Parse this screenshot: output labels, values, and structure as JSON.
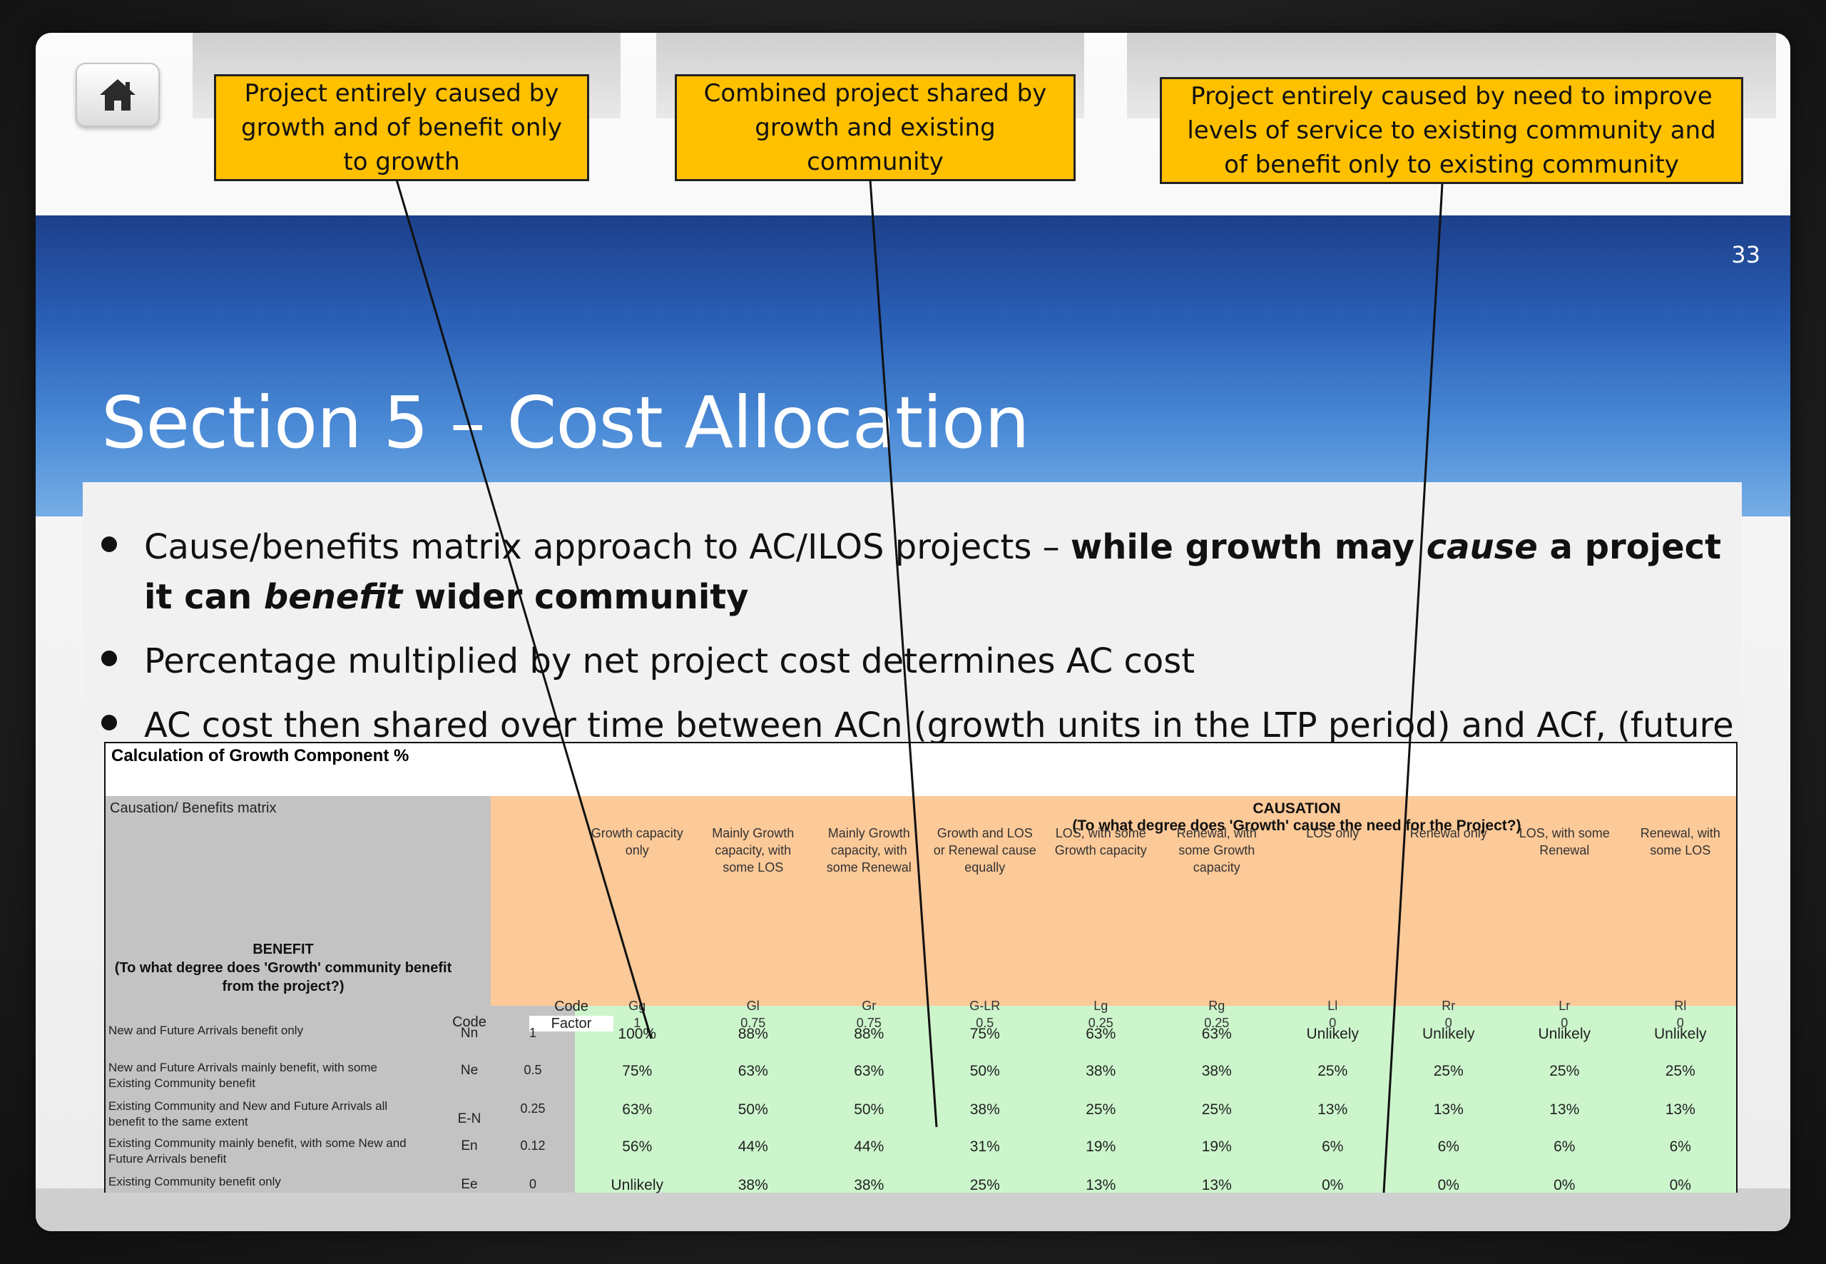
{
  "slide": {
    "number": "33",
    "title": "Section 5 – Cost Allocation"
  },
  "callouts": [
    "Project entirely caused by growth and of benefit only to growth",
    "Combined project shared by growth and existing community",
    "Project entirely caused by need to improve levels of service to existing community and of benefit only to existing community"
  ],
  "bullets": [
    {
      "plain": "Cause/benefits matrix approach to AC/ILOS projects – ",
      "b1": "while growth may ",
      "i1": "cause",
      "b2": " a project it can ",
      "i2": "benefit",
      "b3": " wider community"
    },
    {
      "text": "Percentage multiplied by net project cost determines AC cost"
    },
    {
      "text": "AC cost then shared over time between ACn (growth units in the LTP period) and ACf, (future growth after the LTP)"
    }
  ],
  "matrix": {
    "title": "Calculation of Growth Component %",
    "corner_label": "Causation/ Benefits matrix",
    "causation_title": "CAUSATION",
    "causation_subtitle": "(To what degree does 'Growth' cause the need for the Project?)",
    "benefit_heading": "BENEFIT\n(To what degree does 'Growth' community benefit from the project?)",
    "code_label": "Code",
    "code_label_top": "Code",
    "factor_label": "Factor",
    "columns": [
      {
        "label": "Growth capacity only",
        "code": "Gg",
        "factor": "1"
      },
      {
        "label": "Mainly Growth capacity, with some LOS",
        "code": "Gl",
        "factor": "0.75"
      },
      {
        "label": "Mainly Growth capacity, with some Renewal",
        "code": "Gr",
        "factor": "0.75"
      },
      {
        "label": "Growth and LOS or Renewal cause equally",
        "code": "G-LR",
        "factor": "0.5"
      },
      {
        "label": "LOS, with some Growth capacity",
        "code": "Lg",
        "factor": "0.25"
      },
      {
        "label": "Renewal, with some Growth capacity",
        "code": "Rg",
        "factor": "0.25"
      },
      {
        "label": "LOS only",
        "code": "Ll",
        "factor": "0"
      },
      {
        "label": "Renewal only",
        "code": "Rr",
        "factor": "0"
      },
      {
        "label": "LOS, with some Renewal",
        "code": "Lr",
        "factor": "0"
      },
      {
        "label": "Renewal, with some LOS",
        "code": "Rl",
        "factor": "0"
      }
    ],
    "rows": [
      {
        "label": "New and Future Arrivals benefit only",
        "code": "Nn",
        "factor": "1",
        "values": [
          "100%",
          "88%",
          "88%",
          "75%",
          "63%",
          "63%",
          "Unlikely",
          "Unlikely",
          "Unlikely",
          "Unlikely"
        ]
      },
      {
        "label": "New and Future Arrivals mainly benefit, with some Existing Community benefit",
        "code": "Ne",
        "factor": "0.5",
        "values": [
          "75%",
          "63%",
          "63%",
          "50%",
          "38%",
          "38%",
          "25%",
          "25%",
          "25%",
          "25%"
        ]
      },
      {
        "label": "Existing Community and New and Future Arrivals all benefit to the same extent",
        "code": "E-N",
        "factor": "0.25",
        "values": [
          "63%",
          "50%",
          "50%",
          "38%",
          "25%",
          "25%",
          "13%",
          "13%",
          "13%",
          "13%"
        ]
      },
      {
        "label": "Existing Community mainly benefit, with some New and Future Arrivals benefit",
        "code": "En",
        "factor": "0.12",
        "values": [
          "56%",
          "44%",
          "44%",
          "31%",
          "19%",
          "19%",
          "6%",
          "6%",
          "6%",
          "6%"
        ]
      },
      {
        "label": "Existing Community benefit only",
        "code": "Ee",
        "factor": "0",
        "values": [
          "Unlikely",
          "38%",
          "38%",
          "25%",
          "13%",
          "13%",
          "0%",
          "0%",
          "0%",
          "0%"
        ]
      }
    ]
  },
  "colors": {
    "callout": "#ffc000",
    "header_top": "#1d3f8a",
    "header_bottom": "#76ade6",
    "causation_bg": "#fcc998",
    "value_bg": "#ccf5cc",
    "label_bg": "#c3c3c3"
  },
  "icons": {
    "home": "home-icon"
  }
}
